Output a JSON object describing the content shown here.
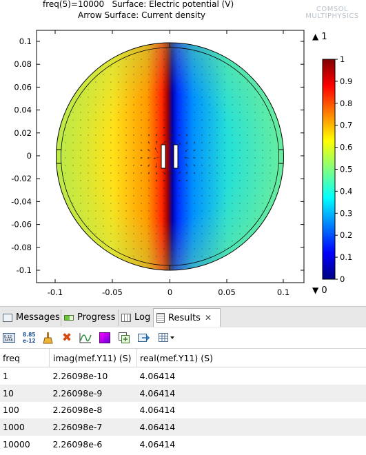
{
  "plot": {
    "title_line1": "freq(5)=10000   Surface: Electric potential (V)",
    "title_line2": "Arrow Surface: Current density",
    "logo_line1": "COMSOL",
    "logo_line2": "MULTIPHYSICS",
    "x_ticks": [
      "-0.1",
      "-0.05",
      "0",
      "0.05",
      "0.1"
    ],
    "y_ticks": [
      "0.1",
      "0.08",
      "0.06",
      "0.04",
      "0.02",
      "0",
      "-0.02",
      "-0.04",
      "-0.06",
      "-0.08",
      "-0.1"
    ],
    "colorbar_ticks": [
      "1",
      "0.9",
      "0.8",
      "0.7",
      "0.6",
      "0.5",
      "0.4",
      "0.3",
      "0.2",
      "0.1",
      "0"
    ],
    "colorbar_max_label": "1",
    "colorbar_min_label": "0"
  },
  "tabs": [
    {
      "label": "Messages",
      "icon": "messages-icon"
    },
    {
      "label": "Progress",
      "icon": "progress-icon"
    },
    {
      "label": "Log",
      "icon": "log-icon"
    },
    {
      "label": "Results",
      "icon": "results-icon",
      "active": true
    }
  ],
  "toolbar_icons": [
    "full-precision-icon",
    "scientific-notation-icon",
    "clear-brush-icon",
    "delete-icon",
    "plot-graph-icon",
    "color-table-icon",
    "copy-to-table-icon",
    "export-icon",
    "table-format-icon"
  ],
  "toolbar_sci_text": "8.85\ne-12",
  "table": {
    "columns": [
      "freq",
      "imag(mef.Y11) (S)",
      "real(mef.Y11) (S)"
    ],
    "rows": [
      [
        "1",
        "2.26098e-10",
        "4.06414"
      ],
      [
        "10",
        "2.26098e-9",
        "4.06414"
      ],
      [
        "100",
        "2.26098e-8",
        "4.06414"
      ],
      [
        "1000",
        "2.26098e-7",
        "4.06414"
      ],
      [
        "10000",
        "2.26098e-6",
        "4.06414"
      ]
    ]
  }
}
